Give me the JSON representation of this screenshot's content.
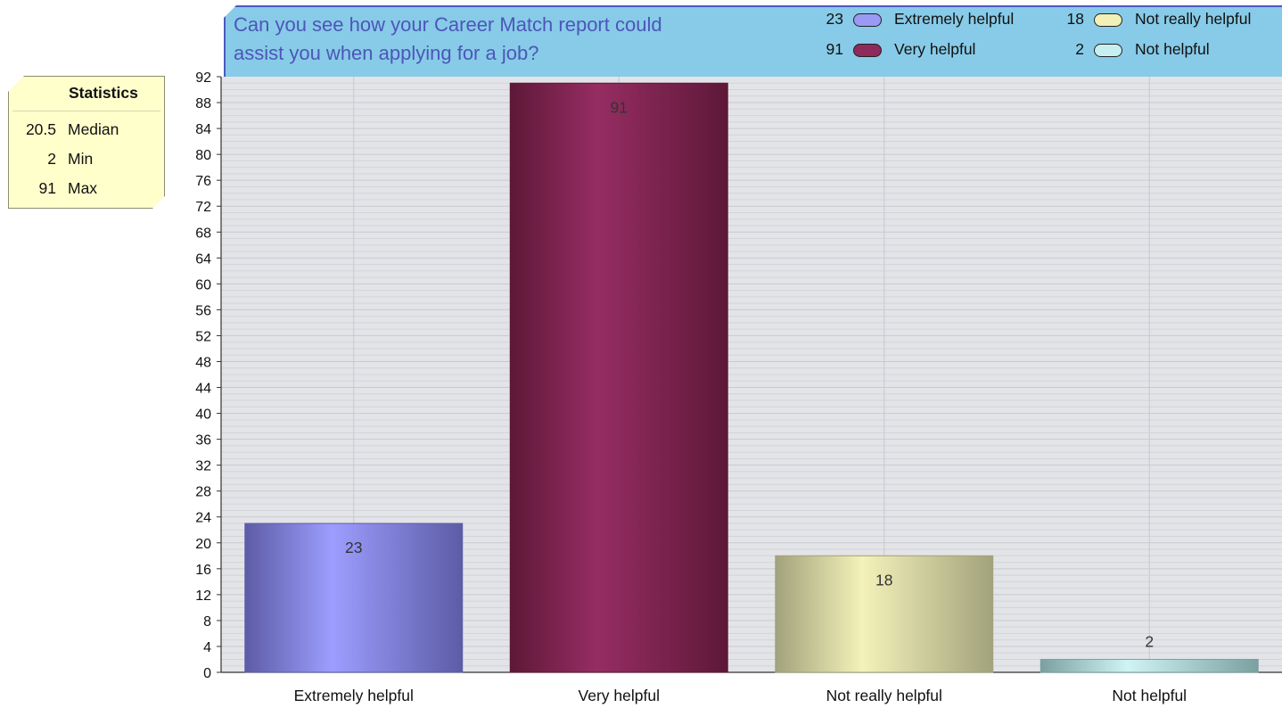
{
  "chart_data": {
    "type": "bar",
    "title": "Can you see how your Career Match report could assist you when applying for a job?",
    "title_lines": [
      "Can you see how your Career Match report could",
      "assist you when applying for a job?"
    ],
    "categories": [
      "Extremely helpful",
      "Very helpful",
      "Not really helpful",
      "Not helpful"
    ],
    "values": [
      23,
      91,
      18,
      2
    ],
    "ylim": [
      0,
      92
    ],
    "ytick_step": 4,
    "grid": true,
    "legend_position": "top-right",
    "legend": [
      {
        "value": "23",
        "label": "Extremely helpful",
        "color": "#9a9af5"
      },
      {
        "value": "91",
        "label": "Very helpful",
        "color": "#8e2a5c"
      },
      {
        "value": "18",
        "label": "Not really helpful",
        "color": "#f2f0b6"
      },
      {
        "value": "2",
        "label": "Not helpful",
        "color": "#c6f0f0"
      }
    ],
    "bar_colors": {
      "dark": [
        "#5c5ca6",
        "#5e1838",
        "#a2a27c",
        "#7aa0a0"
      ],
      "light": [
        "#9d9dff",
        "#962d63",
        "#f4f2b9",
        "#cff4f4"
      ]
    }
  },
  "stats": {
    "heading": "Statistics",
    "rows": [
      {
        "value": "20.5",
        "label": "Median"
      },
      {
        "value": "2",
        "label": "Min"
      },
      {
        "value": "91",
        "label": "Max"
      }
    ]
  }
}
